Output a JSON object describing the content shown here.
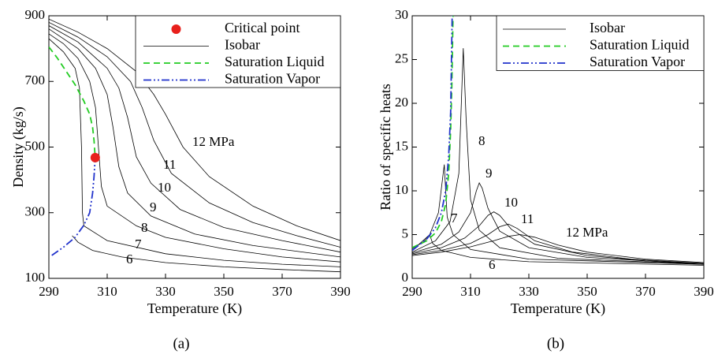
{
  "chart_data": [
    {
      "type": "line",
      "caption": "(a)",
      "xlabel": "Temperature (K)",
      "ylabel": "Density (kg/s)",
      "xlim": [
        290,
        390
      ],
      "ylim": [
        100,
        900
      ],
      "xticks": [
        290,
        310,
        330,
        350,
        370,
        390
      ],
      "yticks": [
        100,
        300,
        500,
        700,
        900
      ],
      "legend": "upper right",
      "series": [
        {
          "name": "Critical point",
          "type": "scatter",
          "color": "#e8201c",
          "x": [
            305.9
          ],
          "values": [
            468
          ]
        },
        {
          "name": "Isobar",
          "color": "#000000",
          "lines": [
            {
              "label": "6",
              "x": [
                298,
                300,
                305,
                315,
                330,
                350,
                370,
                390
              ],
              "values": [
                230,
                210,
                185,
                165,
                148,
                135,
                127,
                120
              ]
            },
            {
              "label": "7",
              "x": [
                290,
                295,
                299,
                300.5,
                301.2,
                301.5,
                302,
                310,
                330,
                350,
                370,
                390
              ],
              "values": [
                830,
                790,
                740,
                680,
                500,
                300,
                260,
                215,
                175,
                155,
                143,
                135
              ]
            },
            {
              "label": "8",
              "x": [
                290,
                295,
                300,
                304,
                306,
                307,
                308,
                310,
                320,
                330,
                350,
                370,
                390
              ],
              "values": [
                845,
                815,
                770,
                700,
                620,
                500,
                380,
                320,
                260,
                225,
                190,
                165,
                150
              ]
            },
            {
              "label": "9",
              "x": [
                290,
                300,
                306,
                310,
                312,
                314,
                317,
                325,
                340,
                360,
                390
              ],
              "values": [
                860,
                800,
                740,
                660,
                560,
                440,
                360,
                290,
                235,
                200,
                165
              ]
            },
            {
              "label": "10",
              "x": [
                290,
                300,
                310,
                314,
                317,
                320,
                325,
                335,
                350,
                370,
                390
              ],
              "values": [
                870,
                820,
                740,
                680,
                590,
                470,
                390,
                310,
                255,
                215,
                180
              ]
            },
            {
              "label": "11",
              "x": [
                290,
                300,
                310,
                318,
                322,
                326,
                332,
                345,
                360,
                375,
                390
              ],
              "values": [
                880,
                835,
                775,
                700,
                620,
                520,
                420,
                330,
                270,
                230,
                195
              ]
            },
            {
              "label": "12 MPa",
              "x": [
                290,
                300,
                310,
                320,
                326,
                330,
                336,
                345,
                360,
                375,
                390
              ],
              "values": [
                890,
                850,
                800,
                730,
                660,
                600,
                500,
                410,
                320,
                260,
                215
              ]
            }
          ]
        },
        {
          "name": "Saturation Liquid",
          "color": "#22cc22",
          "dash": "dashed",
          "x": [
            290,
            293,
            296,
            299,
            302,
            304,
            305,
            305.5,
            305.9
          ],
          "values": [
            805,
            770,
            730,
            690,
            640,
            600,
            560,
            520,
            468
          ]
        },
        {
          "name": "Saturation Vapor",
          "color": "#2233cc",
          "dash": "dashdotdot",
          "x": [
            291,
            295,
            299,
            302,
            304,
            305,
            305.5,
            305.9
          ],
          "values": [
            170,
            195,
            225,
            262,
            300,
            360,
            410,
            468
          ]
        }
      ]
    },
    {
      "type": "line",
      "caption": "(b)",
      "xlabel": "Temperature (K)",
      "ylabel": "Ratio of specific heats",
      "xlim": [
        290,
        390
      ],
      "ylim": [
        0,
        30
      ],
      "xticks": [
        290,
        310,
        330,
        350,
        370,
        390
      ],
      "yticks": [
        0,
        5,
        10,
        15,
        20,
        25,
        30
      ],
      "legend": "upper right",
      "series": [
        {
          "name": "Isobar",
          "color": "#000000",
          "lines": [
            {
              "label": "6",
              "x": [
                290,
                294,
                296,
                297,
                300,
                310,
                330,
                390
              ],
              "values": [
                3.4,
                4.2,
                5,
                4,
                3.2,
                2.4,
                1.9,
                1.5
              ]
            },
            {
              "label": "7",
              "x": [
                290,
                296,
                299,
                301,
                301.5,
                302,
                304,
                310,
                330,
                390
              ],
              "values": [
                3.2,
                5,
                7.5,
                13,
                10,
                7,
                5,
                3.3,
                2.2,
                1.6
              ]
            },
            {
              "label": "8",
              "x": [
                290,
                298,
                303,
                306,
                307.5,
                308.5,
                310,
                313,
                320,
                340,
                390
              ],
              "values": [
                3.0,
                4.3,
                6.5,
                12,
                26.3,
                18,
                9,
                5.5,
                3.5,
                2.3,
                1.6
              ]
            },
            {
              "label": "9",
              "x": [
                290,
                300,
                306,
                310,
                312,
                313,
                314,
                316,
                320,
                330,
                350,
                390
              ],
              "values": [
                2.9,
                3.9,
                5.3,
                7.5,
                10,
                10.9,
                10.3,
                8,
                5.4,
                3.5,
                2.4,
                1.6
              ]
            },
            {
              "label": "10",
              "x": [
                290,
                300,
                308,
                313,
                316,
                318,
                320,
                324,
                332,
                350,
                370,
                390
              ],
              "values": [
                2.8,
                3.5,
                4.6,
                6.0,
                7.2,
                7.6,
                7.2,
                5.6,
                3.9,
                2.6,
                2.0,
                1.7
              ]
            },
            {
              "label": "11",
              "x": [
                290,
                300,
                310,
                316,
                320,
                323,
                326,
                332,
                345,
                365,
                390
              ],
              "values": [
                2.7,
                3.2,
                4.0,
                5.0,
                5.9,
                6.2,
                5.7,
                4.3,
                3.0,
                2.2,
                1.7
              ]
            },
            {
              "label": "12 MPa",
              "x": [
                290,
                300,
                310,
                318,
                323,
                327,
                332,
                340,
                350,
                370,
                390
              ],
              "values": [
                2.6,
                3.0,
                3.6,
                4.3,
                4.8,
                5.0,
                4.7,
                3.8,
                3.0,
                2.2,
                1.8
              ]
            }
          ]
        },
        {
          "name": "Saturation Liquid",
          "color": "#22cc22",
          "dash": "dashed",
          "x": [
            290,
            295,
            298,
            300,
            301.5,
            302.5,
            303.2,
            303.6,
            304
          ],
          "values": [
            3.5,
            4.3,
            5.2,
            6.5,
            8.5,
            12,
            17,
            22,
            30
          ]
        },
        {
          "name": "Saturation Vapor",
          "color": "#2233cc",
          "dash": "dashdotdot",
          "x": [
            290,
            295,
            298,
            300,
            301.5,
            302.5,
            303.2,
            303.7
          ],
          "values": [
            3.2,
            4.5,
            5.8,
            7.5,
            10,
            14,
            19,
            30
          ]
        }
      ]
    }
  ]
}
